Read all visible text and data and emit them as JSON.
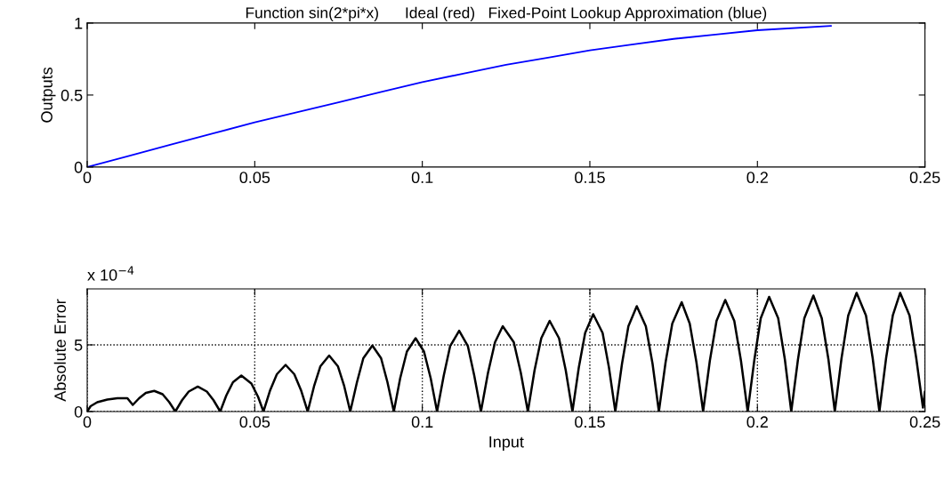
{
  "chart_data": [
    {
      "type": "line",
      "title": "Function sin(2*pi*x)      Ideal (red)   Fixed-Point Lookup Approximation (blue)",
      "ylabel": "Outputs",
      "series": [
        {
          "color": "#0000ff",
          "x": [
            0,
            0.0125,
            0.025,
            0.0375,
            0.05,
            0.0625,
            0.075,
            0.0875,
            0.1,
            0.1125,
            0.125,
            0.1375,
            0.15,
            0.1625,
            0.175,
            0.1875,
            0.2,
            0.222
          ],
          "values": [
            0,
            0.078,
            0.156,
            0.233,
            0.31,
            0.38,
            0.45,
            0.52,
            0.59,
            0.65,
            0.71,
            0.76,
            0.81,
            0.85,
            0.89,
            0.92,
            0.95,
            0.98
          ]
        }
      ],
      "xlim": [
        0,
        0.25
      ],
      "xticks": [
        0,
        0.05,
        0.1,
        0.15,
        0.2,
        0.25
      ],
      "ylim": [
        0,
        1
      ],
      "yticks": [
        0,
        0.5,
        1
      ],
      "grid": false,
      "line_style": "solid",
      "marker": "none"
    },
    {
      "type": "line",
      "xlabel": "Input",
      "ylabel": "Absolute Error",
      "annotations": [
        "x 10$^{−4}$"
      ],
      "series": [
        {
          "color": "#000000",
          "x": [
            0,
            0.001,
            0.003,
            0.006,
            0.009,
            0.012,
            0.0136,
            0.0155,
            0.0175,
            0.02,
            0.0225,
            0.0245,
            0.0263,
            0.0283,
            0.0303,
            0.033,
            0.0357,
            0.0377,
            0.0397,
            0.0415,
            0.0435,
            0.046,
            0.049,
            0.051,
            0.0526,
            0.0546,
            0.0566,
            0.0592,
            0.0618,
            0.0638,
            0.0658,
            0.0677,
            0.0696,
            0.0722,
            0.0748,
            0.0767,
            0.0785,
            0.0805,
            0.0824,
            0.0851,
            0.0877,
            0.0896,
            0.0915,
            0.0934,
            0.0954,
            0.098,
            0.1005,
            0.1025,
            0.1044,
            0.1064,
            0.1083,
            0.111,
            0.1136,
            0.1155,
            0.1175,
            0.1196,
            0.1217,
            0.124,
            0.1273,
            0.1294,
            0.1315,
            0.1335,
            0.1355,
            0.138,
            0.1408,
            0.1428,
            0.1448,
            0.1467,
            0.1486,
            0.151,
            0.1538,
            0.1557,
            0.1576,
            0.1596,
            0.1615,
            0.164,
            0.1667,
            0.1687,
            0.1706,
            0.1726,
            0.1746,
            0.1774,
            0.1798,
            0.1818,
            0.1838,
            0.1858,
            0.1878,
            0.1904,
            0.1931,
            0.1951,
            0.1971,
            0.1991,
            0.201,
            0.2035,
            0.2062,
            0.2082,
            0.2101,
            0.2121,
            0.214,
            0.2167,
            0.2192,
            0.2212,
            0.2231,
            0.2251,
            0.2271,
            0.2296,
            0.2324,
            0.2344,
            0.2364,
            0.2384,
            0.2404,
            0.2426,
            0.2454,
            0.2474,
            0.2494,
            0.25
          ],
          "values": [
            0,
            0.4,
            0.7,
            0.9,
            1.0,
            1.0,
            0.5,
            1.0,
            1.4,
            1.55,
            1.3,
            0.7,
            0,
            0.85,
            1.5,
            1.87,
            1.5,
            0.85,
            0,
            1.2,
            2.2,
            2.7,
            2.1,
            1.1,
            0,
            1.6,
            2.8,
            3.5,
            2.8,
            1.6,
            0,
            1.9,
            3.4,
            4.2,
            3.4,
            1.9,
            0,
            2.2,
            4.0,
            4.95,
            4.0,
            2.2,
            0,
            2.5,
            4.5,
            5.5,
            4.5,
            2.5,
            0,
            2.7,
            4.9,
            6.06,
            4.9,
            2.7,
            0,
            2.9,
            5.2,
            6.4,
            5.2,
            2.9,
            0,
            3.1,
            5.5,
            6.8,
            5.5,
            3.1,
            0,
            3.3,
            5.9,
            7.3,
            5.9,
            3.3,
            0,
            3.6,
            6.4,
            7.9,
            6.4,
            3.6,
            0,
            3.7,
            6.6,
            8.2,
            6.6,
            3.7,
            0,
            3.8,
            6.8,
            8.37,
            6.8,
            3.8,
            0,
            3.9,
            7.0,
            8.6,
            7.0,
            3.9,
            0,
            3.9,
            7.0,
            8.7,
            7.0,
            3.9,
            0,
            4.0,
            7.2,
            8.9,
            7.2,
            4.0,
            0,
            4.0,
            7.2,
            8.9,
            7.2,
            4.0,
            0.3,
            1.5
          ]
        }
      ],
      "xlim": [
        0,
        0.25
      ],
      "xticks": [
        0,
        0.05,
        0.1,
        0.15,
        0.2,
        0.25
      ],
      "ylim": [
        0,
        9.2
      ],
      "yticks": [
        0,
        5
      ],
      "grid": true,
      "line_style": "solid",
      "marker": "none"
    }
  ]
}
